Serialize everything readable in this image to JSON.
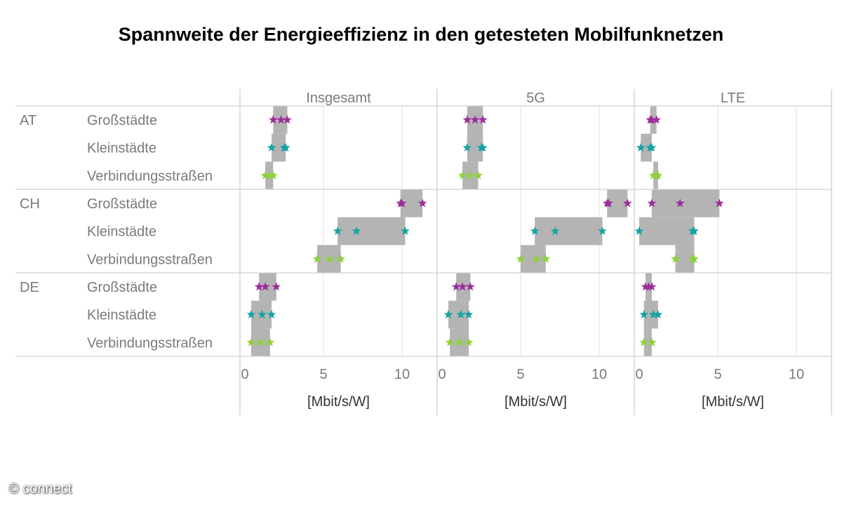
{
  "chart_data": {
    "type": "range-dot",
    "title": "Spannweite der Energieeffizienz in den getesteten Mobilfunknetzen",
    "xlabel": "[Mbit/s/W]",
    "xlim": [
      0,
      12.5
    ],
    "xticks": [
      0,
      5,
      10
    ],
    "panels": [
      "Insgesamt",
      "5G",
      "LTE"
    ],
    "groups": [
      "AT",
      "CH",
      "DE"
    ],
    "rows": [
      "Großstädte",
      "Kleinstädte",
      "Verbindungsstraßen"
    ],
    "colors": {
      "Großstädte": "#9b2d9b",
      "Kleinstädte": "#14a3a3",
      "Verbindungsstraßen": "#8ed13a",
      "range": "#b4b4b4",
      "grid": "#e0e0e0",
      "divider": "#d0d0d0",
      "text": "#7a7a7a"
    },
    "data": {
      "Insgesamt": {
        "AT": [
          [
            1.8,
            2.3,
            2.7
          ],
          [
            1.7,
            2.5,
            2.6
          ],
          [
            1.3,
            1.6,
            1.8
          ]
        ],
        "CH": [
          [
            9.9,
            10.0,
            11.3
          ],
          [
            5.9,
            7.1,
            10.2
          ],
          [
            4.6,
            5.4,
            6.1
          ]
        ],
        "DE": [
          [
            0.9,
            1.3,
            2.0
          ],
          [
            0.4,
            1.1,
            1.7
          ],
          [
            0.4,
            1.0,
            1.6
          ]
        ]
      },
      "5G": {
        "AT": [
          [
            1.6,
            2.1,
            2.6
          ],
          [
            1.6,
            2.5,
            2.6
          ],
          [
            1.3,
            1.8,
            2.3
          ]
        ],
        "CH": [
          [
            10.5,
            10.6,
            11.8
          ],
          [
            5.9,
            7.2,
            10.2
          ],
          [
            5.0,
            6.0,
            6.6
          ]
        ],
        "DE": [
          [
            0.9,
            1.3,
            1.8
          ],
          [
            0.4,
            1.2,
            1.7
          ],
          [
            0.5,
            1.1,
            1.7
          ]
        ]
      },
      "LTE": {
        "AT": [
          [
            0.7,
            0.8,
            1.1
          ],
          [
            0.1,
            0.7,
            0.8
          ],
          [
            0.9,
            1.1,
            1.2
          ]
        ],
        "CH": [
          [
            0.8,
            2.6,
            5.1
          ],
          [
            0.0,
            3.4,
            3.5
          ],
          [
            2.3,
            3.4,
            3.5
          ]
        ],
        "DE": [
          [
            0.4,
            0.6,
            0.8
          ],
          [
            0.3,
            0.9,
            1.2
          ],
          [
            0.3,
            0.8,
            0.8
          ]
        ]
      }
    }
  },
  "copyright": "© connect"
}
